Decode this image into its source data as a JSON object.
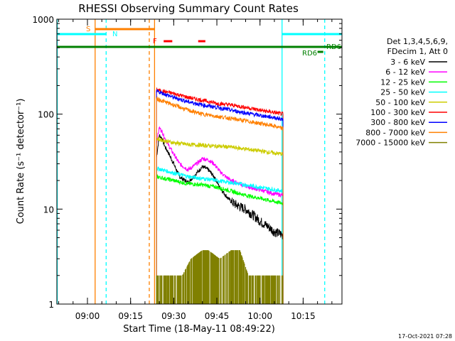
{
  "colors": {
    "bg": "#ffffff",
    "axis": "#000000",
    "band_3_6": "#000000",
    "band_6_12": "#ff00ff",
    "band_12_25": "#00ff00",
    "band_25_50": "#00ffff",
    "band_50_100": "#cccc00",
    "band_100_300": "#ff0000",
    "band_300_800": "#0000ff",
    "band_800_7000": "#ff8000",
    "band_7000_15000": "#808000",
    "saa_orange": "#ff8000",
    "night_cyan": "#00ffff",
    "flare_red": "#ff0000",
    "decimation_green": "#008000"
  },
  "chart_data": {
    "type": "line",
    "title": "RHESSI Observing Summary Count Rates",
    "xlabel": "Start Time (18-May-11 08:49:22)",
    "ylabel": "Count Rate (s⁻¹ detector⁻¹)",
    "yscale": "log",
    "xlim": [
      "08:49:22",
      "10:28:30"
    ],
    "ylim": [
      1,
      1000
    ],
    "x_ticks": [
      "09:00",
      "09:15",
      "09:30",
      "09:45",
      "10:00",
      "10:15"
    ],
    "y_ticks": [
      "1",
      "10",
      "100",
      "1000"
    ],
    "legend_title": [
      "Det 1,3,4,5,6,9,",
      "FDecim 1, Att 0"
    ],
    "legend_position": "right",
    "series": [
      {
        "name": "3 - 6 keV",
        "color": "#000000",
        "x": [
          "09:24",
          "09:25",
          "09:26",
          "09:27",
          "09:28",
          "09:30",
          "09:32",
          "09:35",
          "09:38",
          "09:40",
          "09:42",
          "09:44",
          "09:46",
          "09:48",
          "09:50",
          "09:52",
          "09:55",
          "09:58",
          "10:00",
          "10:03",
          "10:05",
          "10:07",
          "10:08"
        ],
        "y": [
          35,
          60,
          55,
          45,
          40,
          30,
          22,
          19,
          24,
          28,
          26,
          22,
          17,
          14,
          12,
          11,
          10,
          8.5,
          7.5,
          6.5,
          5.8,
          5.5,
          5.3
        ]
      },
      {
        "name": "6 - 12 keV",
        "color": "#ff00ff",
        "x": [
          "09:24",
          "09:25",
          "09:26",
          "09:27",
          "09:28",
          "09:30",
          "09:32",
          "09:35",
          "09:38",
          "09:40",
          "09:42",
          "09:44",
          "09:46",
          "09:48",
          "09:50",
          "09:52",
          "09:55",
          "09:58",
          "10:00",
          "10:03",
          "10:05",
          "10:08"
        ],
        "y": [
          50,
          72,
          65,
          55,
          48,
          38,
          30,
          26,
          30,
          34,
          33,
          30,
          25,
          22,
          20,
          19,
          17.5,
          16.5,
          16,
          15,
          14.5,
          14
        ]
      },
      {
        "name": "12 - 25 keV",
        "color": "#00ff00",
        "x": [
          "09:24",
          "09:30",
          "09:35",
          "09:40",
          "09:45",
          "09:50",
          "09:55",
          "10:00",
          "10:05",
          "10:08"
        ],
        "y": [
          22,
          20,
          18.5,
          18,
          17,
          15.5,
          14,
          13,
          12,
          11.5
        ]
      },
      {
        "name": "25 - 50 keV",
        "color": "#00ffff",
        "x": [
          "09:24",
          "09:30",
          "09:35",
          "09:40",
          "09:45",
          "09:50",
          "09:55",
          "10:00",
          "10:05",
          "10:08"
        ],
        "y": [
          27,
          24,
          22,
          21,
          20,
          19,
          18,
          17,
          16,
          15.5
        ]
      },
      {
        "name": "50 - 100 keV",
        "color": "#cccc00",
        "x": [
          "09:24",
          "09:30",
          "09:35",
          "09:40",
          "09:45",
          "09:50",
          "09:55",
          "10:00",
          "10:05",
          "10:08"
        ],
        "y": [
          55,
          50,
          48,
          47,
          46,
          45,
          43,
          41,
          39,
          38
        ]
      },
      {
        "name": "100 - 300 keV",
        "color": "#ff0000",
        "x": [
          "09:24",
          "09:30",
          "09:35",
          "09:40",
          "09:45",
          "09:50",
          "09:55",
          "10:00",
          "10:05",
          "10:08"
        ],
        "y": [
          180,
          165,
          150,
          140,
          130,
          125,
          118,
          110,
          104,
          100
        ]
      },
      {
        "name": "300 - 800 keV",
        "color": "#0000ff",
        "x": [
          "09:24",
          "09:30",
          "09:35",
          "09:40",
          "09:45",
          "09:50",
          "09:55",
          "10:00",
          "10:05",
          "10:08"
        ],
        "y": [
          175,
          150,
          135,
          125,
          118,
          110,
          103,
          97,
          92,
          88
        ]
      },
      {
        "name": "800 - 7000 keV",
        "color": "#ff8000",
        "x": [
          "09:24",
          "09:30",
          "09:35",
          "09:40",
          "09:45",
          "09:50",
          "09:55",
          "10:00",
          "10:05",
          "10:08"
        ],
        "y": [
          145,
          125,
          110,
          100,
          95,
          90,
          85,
          80,
          75,
          70
        ]
      },
      {
        "name": "7000 - 15000 keV",
        "color": "#808000",
        "x": [
          "09:24",
          "09:33",
          "09:36",
          "09:40",
          "09:42",
          "09:46",
          "09:50",
          "09:53",
          "09:56",
          "10:08"
        ],
        "y": [
          2,
          2,
          3,
          3.7,
          3.7,
          3,
          3.7,
          3.7,
          2,
          2
        ]
      }
    ],
    "flags": {
      "s_label": "S",
      "n_label": "N",
      "f_label": "F",
      "rd6_label": "RD6",
      "rd6_top_label": "RD6"
    },
    "vertical_markers": [
      {
        "time": "08:49:30",
        "color": "#00ffff",
        "style": "solid"
      },
      {
        "time": "09:02:40",
        "color": "#ff8000",
        "style": "solid"
      },
      {
        "time": "09:06:30",
        "color": "#00ffff",
        "style": "dashed"
      },
      {
        "time": "09:21:30",
        "color": "#ff8000",
        "style": "dashed"
      },
      {
        "time": "09:23:20",
        "color": "#ff8000",
        "style": "solid"
      },
      {
        "time": "10:07:40",
        "color": "#00ffff",
        "style": "solid"
      },
      {
        "time": "10:22:30",
        "color": "#00ffff",
        "style": "dashed"
      }
    ],
    "timestamp": "17-Oct-2021 07:28"
  }
}
